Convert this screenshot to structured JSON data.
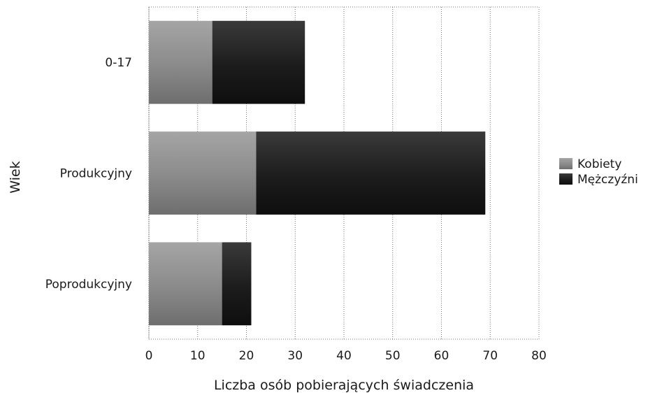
{
  "chart_data": {
    "type": "bar",
    "orientation": "horizontal",
    "stacked": true,
    "title": "",
    "xlabel": "Liczba osób pobierających świadczenia",
    "ylabel": "Wiek",
    "categories": [
      "0-17",
      "Produkcyjny",
      "Poprodukcyjny"
    ],
    "series": [
      {
        "name": "Kobiety",
        "values": [
          13,
          22,
          15
        ],
        "color": "#8a8a8a"
      },
      {
        "name": "Mężczyźni",
        "values": [
          19,
          47,
          6
        ],
        "color": "#1c1c1c"
      }
    ],
    "xlim": [
      0,
      80
    ],
    "x_ticks": [
      "0",
      "10",
      "20",
      "30",
      "40",
      "50",
      "60",
      "70",
      "80"
    ],
    "grid": "vertical",
    "legend": "right"
  }
}
